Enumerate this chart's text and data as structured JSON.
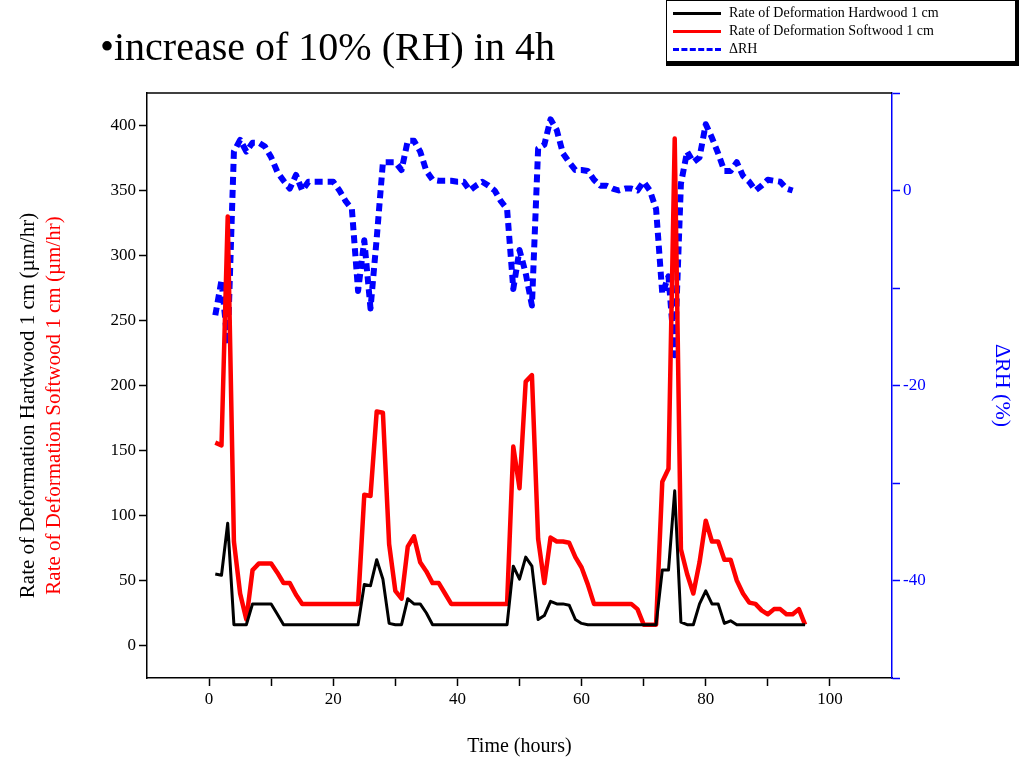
{
  "chart_data": {
    "type": "line",
    "title": "•increase of 10% (RH) in 4h",
    "xlabel": "Time (hours)",
    "ylabel": [
      "Rate of Deformation Hardwood 1 cm (µm/hr)",
      "Rate of Deformation Softwood 1 cm (µm/hr)"
    ],
    "y2label": "ΔRH (%)",
    "x": [
      1,
      2,
      3,
      4,
      5,
      6,
      7,
      8,
      9,
      10,
      11,
      12,
      13,
      14,
      15,
      16,
      17,
      18,
      19,
      20,
      21,
      22,
      23,
      24,
      25,
      26,
      27,
      28,
      29,
      30,
      31,
      32,
      33,
      34,
      35,
      36,
      37,
      38,
      39,
      40,
      41,
      42,
      43,
      44,
      45,
      46,
      47,
      48,
      49,
      50,
      51,
      52,
      53,
      54,
      55,
      56,
      57,
      58,
      59,
      60,
      61,
      62,
      63,
      64,
      65,
      66,
      67,
      68,
      69,
      70,
      71,
      72,
      73,
      74,
      75,
      76,
      77,
      78,
      79,
      80,
      81,
      82,
      83,
      84,
      85,
      86,
      87,
      88,
      89,
      90,
      91,
      92,
      93,
      94,
      95,
      96
    ],
    "series": [
      {
        "name": "Rate of Deformation Hardwood 1 cm",
        "color": "#000000",
        "line_style": "solid",
        "values": [
          55,
          54,
          94,
          16,
          16,
          16,
          32,
          32,
          32,
          32,
          24,
          16,
          16,
          16,
          16,
          16,
          16,
          16,
          16,
          16,
          16,
          16,
          16,
          16,
          47,
          46,
          66,
          51,
          17,
          16,
          16,
          36,
          32,
          32,
          25,
          16,
          16,
          16,
          16,
          16,
          16,
          16,
          16,
          16,
          16,
          16,
          16,
          16,
          61,
          51,
          68,
          61,
          20,
          23,
          34,
          32,
          32,
          31,
          20,
          17,
          16,
          16,
          16,
          16,
          16,
          16,
          16,
          16,
          16,
          16,
          16,
          16,
          58,
          58,
          119,
          18,
          16,
          16,
          32,
          42,
          32,
          32,
          17,
          19,
          16,
          16,
          16,
          16,
          16,
          16,
          16,
          16,
          16,
          16,
          16,
          16
        ]
      },
      {
        "name": "Rate of Deformation Softwood 1 cm",
        "color": "#ff0000",
        "line_style": "solid",
        "values": [
          156,
          154,
          330,
          80,
          40,
          20,
          58,
          63,
          63,
          63,
          56,
          48,
          48,
          39,
          32,
          32,
          32,
          32,
          32,
          32,
          32,
          32,
          32,
          32,
          116,
          115,
          180,
          179,
          78,
          42,
          36,
          76,
          84,
          64,
          57,
          48,
          48,
          40,
          32,
          32,
          32,
          32,
          32,
          32,
          32,
          32,
          32,
          32,
          153,
          121,
          203,
          208,
          82,
          48,
          83,
          80,
          80,
          79,
          68,
          60,
          47,
          32,
          32,
          32,
          32,
          32,
          32,
          32,
          28,
          16,
          16,
          16,
          126,
          136,
          390,
          74,
          55,
          40,
          64,
          96,
          80,
          80,
          66,
          66,
          50,
          40,
          33,
          32,
          27,
          24,
          28,
          28,
          24,
          24,
          28,
          16
        ]
      },
      {
        "name": "ΔRH",
        "color": "#0000ff",
        "line_style": "dashed",
        "axis": "y2",
        "values": [
          -12.8,
          -9.2,
          -15.8,
          4.0,
          5.2,
          4.0,
          4.9,
          4.9,
          4.5,
          3.4,
          1.9,
          1.0,
          0.2,
          1.6,
          0,
          0.9,
          0.9,
          0.9,
          0.9,
          0.9,
          0,
          -1.1,
          -1.9,
          -10.3,
          -5.1,
          -12.1,
          -4.9,
          2.9,
          2.9,
          2.9,
          2.1,
          5.1,
          5.1,
          4.0,
          2.0,
          1.1,
          1.0,
          1.0,
          1.0,
          0.9,
          0.9,
          0,
          0.5,
          0.9,
          0.5,
          0,
          -1.1,
          -1.9,
          -10.1,
          -6.1,
          -8.5,
          -11.8,
          4.3,
          4.7,
          7.3,
          6.2,
          3.8,
          2.9,
          2.1,
          2.1,
          2.0,
          1.1,
          0.5,
          0.5,
          0.2,
          0,
          0.2,
          0.2,
          0,
          0.9,
          0,
          -1.9,
          -10.6,
          -8.8,
          -16.9,
          0.7,
          4.0,
          2.9,
          3.4,
          6.8,
          5.4,
          3.8,
          2.0,
          2.0,
          2.9,
          1.5,
          0.9,
          0,
          0.5,
          1.1,
          1.0,
          0.9,
          0.2,
          0,
          null,
          null
        ]
      }
    ],
    "xlim": [
      -10,
      110
    ],
    "xticks": [
      0,
      {
        "value": 10,
        "label": null
      },
      20,
      {
        "value": 30,
        "label": null
      },
      40,
      {
        "value": 50,
        "label": null
      },
      60,
      {
        "value": 70,
        "label": null
      },
      80,
      {
        "value": 90,
        "label": null
      },
      100
    ],
    "ylim": [
      -25,
      425
    ],
    "yticks": [
      0,
      50,
      100,
      150,
      200,
      250,
      300,
      350,
      400
    ],
    "y2lim": [
      -50,
      10
    ],
    "y2ticks": [
      {
        "value": -50,
        "label": null
      },
      -40,
      {
        "value": -30,
        "label": null
      },
      -20,
      {
        "value": -10,
        "label": null
      },
      0,
      {
        "value": 10,
        "label": null
      }
    ],
    "grid": false,
    "legend": "top right",
    "marker": "none"
  }
}
